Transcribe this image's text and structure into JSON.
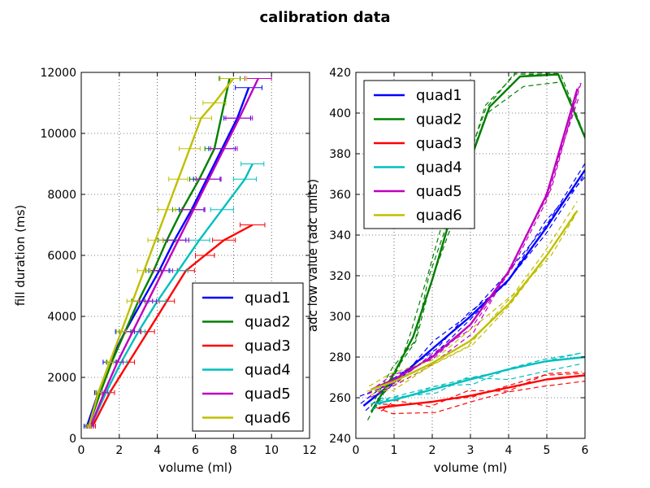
{
  "figure": {
    "title": "calibration data"
  },
  "chart_data": [
    {
      "type": "line",
      "xlabel": "volume (ml)",
      "ylabel": "fill duration (ms)",
      "xlim": [
        0,
        12
      ],
      "ylim": [
        0,
        12000
      ],
      "xticks": [
        0,
        2,
        4,
        6,
        8,
        10,
        12
      ],
      "yticks": [
        0,
        2000,
        4000,
        6000,
        8000,
        10000,
        12000
      ],
      "grid": true,
      "legend": "lower-right",
      "error_bars": "horizontal",
      "series": [
        {
          "name": "quad1",
          "color": "#0000ff",
          "x": [
            0.3,
            0.9,
            1.5,
            2.3,
            3.2,
            4.1,
            4.9,
            5.8,
            6.6,
            7.4,
            8.2,
            8.8
          ],
          "y": [
            400,
            1500,
            2500,
            3500,
            4500,
            5500,
            6500,
            7500,
            8500,
            9500,
            10500,
            11500
          ],
          "xerr": [
            0.15,
            0.2,
            0.35,
            0.5,
            0.55,
            0.55,
            0.6,
            0.65,
            0.7,
            0.7,
            0.7,
            0.7
          ]
        },
        {
          "name": "quad2",
          "color": "#008000",
          "x": [
            0.4,
            1.0,
            1.6,
            2.3,
            3.0,
            3.8,
            4.5,
            5.3,
            6.2,
            7.0,
            7.8
          ],
          "y": [
            400,
            1500,
            2500,
            3500,
            4500,
            5500,
            6500,
            7500,
            8500,
            9500,
            11800
          ],
          "xerr": [
            0.15,
            0.2,
            0.25,
            0.3,
            0.35,
            0.4,
            0.45,
            0.5,
            0.5,
            0.5,
            0.55
          ]
        },
        {
          "name": "quad3",
          "color": "#ff0000",
          "x": [
            0.6,
            1.5,
            2.5,
            3.5,
            4.5,
            5.5,
            6.5,
            7.5,
            9.0
          ],
          "y": [
            400,
            1500,
            2500,
            3500,
            4500,
            5500,
            6000,
            6500,
            7000
          ],
          "xerr": [
            0.15,
            0.25,
            0.3,
            0.35,
            0.4,
            0.45,
            0.5,
            0.6,
            0.65
          ]
        },
        {
          "name": "quad4",
          "color": "#00bfbf",
          "x": [
            0.5,
            1.3,
            2.1,
            3.0,
            4.0,
            5.1,
            6.2,
            7.4,
            8.6,
            9.0
          ],
          "y": [
            400,
            1500,
            2500,
            3500,
            4500,
            5500,
            6500,
            7500,
            8500,
            9000
          ],
          "xerr": [
            0.15,
            0.2,
            0.3,
            0.35,
            0.45,
            0.5,
            0.55,
            0.6,
            0.6,
            0.6
          ]
        },
        {
          "name": "quad5",
          "color": "#bf00bf",
          "x": [
            0.5,
            1.2,
            1.9,
            2.7,
            3.5,
            4.3,
            5.1,
            5.9,
            6.7,
            7.5,
            8.3,
            9.3
          ],
          "y": [
            400,
            1500,
            2500,
            3500,
            4500,
            5500,
            6500,
            7500,
            8500,
            9500,
            10500,
            11800
          ],
          "xerr": [
            0.15,
            0.2,
            0.3,
            0.4,
            0.45,
            0.5,
            0.55,
            0.6,
            0.65,
            0.7,
            0.7,
            0.7
          ]
        },
        {
          "name": "quad6",
          "color": "#bfbf00",
          "x": [
            0.4,
            0.9,
            1.5,
            2.1,
            2.7,
            3.3,
            3.9,
            4.5,
            5.1,
            5.7,
            6.3,
            7.0,
            8.0
          ],
          "y": [
            400,
            1500,
            2500,
            3500,
            4500,
            5500,
            6500,
            7500,
            8500,
            9500,
            10500,
            11000,
            11800
          ],
          "xerr": [
            0.1,
            0.15,
            0.2,
            0.25,
            0.3,
            0.35,
            0.4,
            0.45,
            0.5,
            0.55,
            0.55,
            0.6,
            0.7
          ]
        }
      ]
    },
    {
      "type": "line",
      "xlabel": "volume (ml)",
      "ylabel": "adc low value (adc units)",
      "xlim": [
        0,
        6
      ],
      "ylim": [
        240,
        420
      ],
      "xticks": [
        0,
        1,
        2,
        3,
        4,
        5,
        6
      ],
      "yticks": [
        240,
        260,
        280,
        300,
        320,
        340,
        360,
        380,
        400,
        420
      ],
      "grid": true,
      "legend": "upper-left",
      "dashed_replicates": true,
      "series": [
        {
          "name": "quad1",
          "color": "#0000ff",
          "x": [
            0.2,
            1.0,
            2.0,
            3.0,
            4.0,
            5.0,
            6.0
          ],
          "y": [
            256,
            268,
            284,
            300,
            318,
            344,
            372
          ]
        },
        {
          "name": "quad2",
          "color": "#008000",
          "x": [
            0.4,
            1.0,
            1.5,
            2.0,
            2.5,
            3.0,
            3.5,
            4.3,
            5.3,
            6.0
          ],
          "y": [
            253,
            272,
            290,
            318,
            350,
            377,
            403,
            418,
            419,
            388
          ]
        },
        {
          "name": "quad3",
          "color": "#ff0000",
          "x": [
            0.6,
            1.0,
            2.0,
            3.0,
            4.0,
            5.0,
            6.0
          ],
          "y": [
            255,
            256,
            258,
            261,
            265,
            269,
            271
          ]
        },
        {
          "name": "quad4",
          "color": "#00bfbf",
          "x": [
            0.5,
            1.0,
            2.0,
            3.0,
            4.0,
            5.0,
            6.0
          ],
          "y": [
            257,
            259,
            264,
            269,
            274,
            278,
            280
          ]
        },
        {
          "name": "quad5",
          "color": "#bf00bf",
          "x": [
            0.4,
            1.0,
            2.0,
            3.0,
            4.0,
            5.0,
            5.8
          ],
          "y": [
            264,
            269,
            280,
            296,
            322,
            360,
            412
          ]
        },
        {
          "name": "quad6",
          "color": "#bfbf00",
          "x": [
            0.4,
            1.0,
            2.0,
            3.0,
            4.0,
            5.0,
            5.8
          ],
          "y": [
            264,
            268,
            277,
            288,
            306,
            330,
            352
          ]
        }
      ]
    }
  ]
}
